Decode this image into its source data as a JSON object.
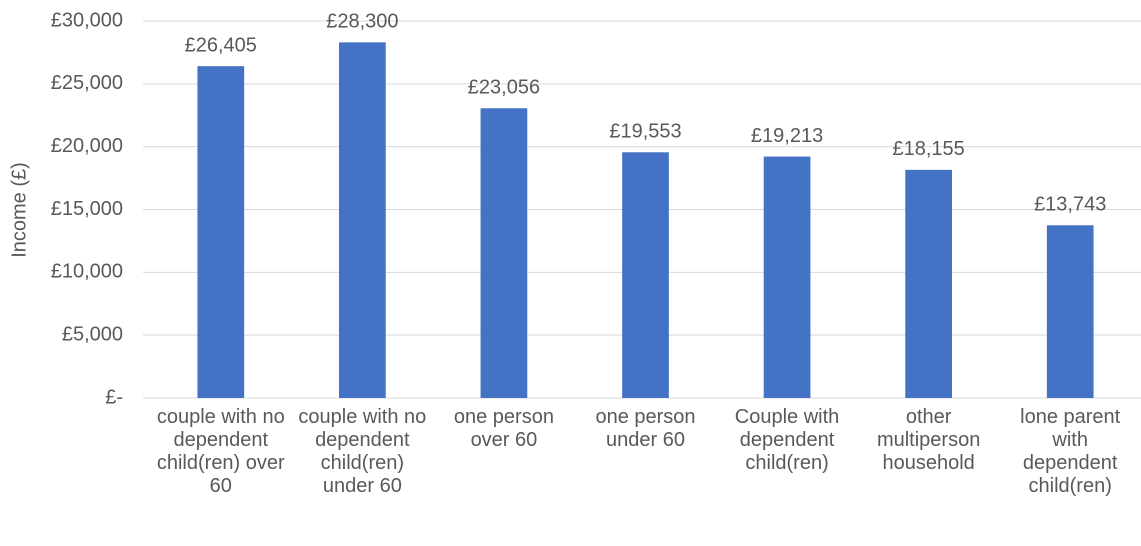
{
  "chart_data": {
    "type": "bar",
    "y_label": "Income (£)",
    "categories": [
      "couple with no dependent child(ren) over 60",
      "couple with no dependent child(ren) under 60",
      "one person over 60",
      "one person under 60",
      "Couple with dependent child(ren)",
      "other multiperson household",
      "lone parent with dependent child(ren)"
    ],
    "values": [
      26405,
      28300,
      23056,
      19553,
      19213,
      18155,
      13743
    ],
    "value_labels": [
      "£26,405",
      "£28,300",
      "£23,056",
      "£19,553",
      "£19,213",
      "£18,155",
      "£13,743"
    ],
    "color": "#4472c4",
    "ylim": [
      0,
      30000
    ],
    "yticks": [
      {
        "value": 0,
        "label": "£-"
      },
      {
        "value": 5000,
        "label": "£5,000"
      },
      {
        "value": 10000,
        "label": "£10,000"
      },
      {
        "value": 15000,
        "label": "£15,000"
      },
      {
        "value": 20000,
        "label": "£20,000"
      },
      {
        "value": 25000,
        "label": "£25,000"
      },
      {
        "value": 30000,
        "label": "£30,000"
      }
    ],
    "grid": true
  }
}
